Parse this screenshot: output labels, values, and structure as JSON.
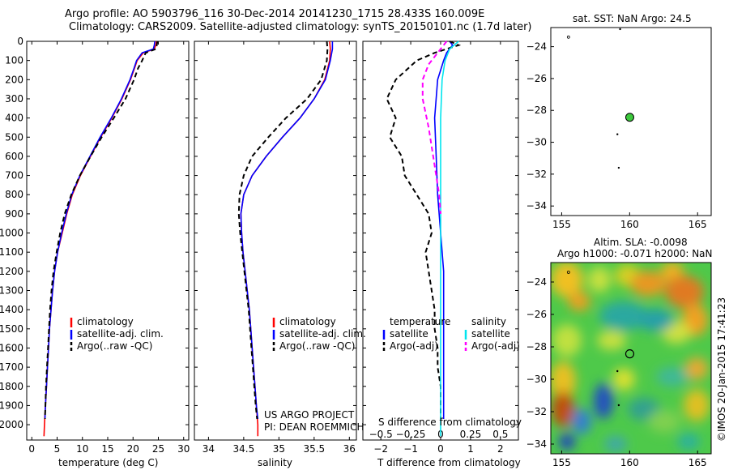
{
  "header": {
    "line1": "Argo profile: AO 5903796_116 30-Dec-2014 20141230_1715 28.433S 160.009E",
    "line2": "Climatology: CARS2009. Satellite-adjusted climatology: synTS_20150101.nc (1.7d later)"
  },
  "colors": {
    "climatology": "#ff0000",
    "satellite": "#0000ff",
    "argo": "#000000",
    "sat_salinity": "#00e5ee",
    "argo_adj_salinity": "#ff00ff"
  },
  "credit": "©IMOS 20-Jan-2015 17:41:23",
  "project": {
    "line1": "US ARGO PROJECT",
    "line2": "PI: DEAN ROEMMICH"
  },
  "chart_data": [
    {
      "type": "line",
      "panel": "temperature",
      "xlabel": "temperature (deg C)",
      "ylabel": "",
      "xlim": [
        -1,
        31
      ],
      "ylim": [
        2080,
        0
      ],
      "xticks": [
        0,
        5,
        10,
        15,
        20,
        25,
        30
      ],
      "yticks": [
        0,
        100,
        200,
        300,
        400,
        500,
        600,
        700,
        800,
        900,
        1000,
        1100,
        1200,
        1300,
        1400,
        1500,
        1600,
        1700,
        1800,
        1900,
        2000
      ],
      "legend": [
        "climatology",
        "satellite-adj. clim.",
        "Argo(..raw -QC)"
      ],
      "series": [
        {
          "name": "climatology",
          "style": "solid",
          "color": "#ff0000",
          "points": [
            [
              24.6,
              0
            ],
            [
              24.5,
              20
            ],
            [
              24.2,
              40
            ],
            [
              22,
              60
            ],
            [
              20.8,
              100
            ],
            [
              20.3,
              140
            ],
            [
              19.5,
              200
            ],
            [
              17.8,
              300
            ],
            [
              15.8,
              400
            ],
            [
              13.6,
              500
            ],
            [
              11.6,
              600
            ],
            [
              9.6,
              700
            ],
            [
              8,
              800
            ],
            [
              6.9,
              900
            ],
            [
              6,
              1000
            ],
            [
              5.1,
              1100
            ],
            [
              4.5,
              1200
            ],
            [
              4.1,
              1300
            ],
            [
              3.8,
              1400
            ],
            [
              3.5,
              1500
            ],
            [
              3.3,
              1600
            ],
            [
              3.1,
              1700
            ],
            [
              2.9,
              1800
            ],
            [
              2.7,
              1900
            ],
            [
              2.5,
              2000
            ],
            [
              2.4,
              2060
            ]
          ]
        },
        {
          "name": "satellite-adj. clim.",
          "style": "solid",
          "color": "#0000ff",
          "points": [
            [
              24.3,
              0
            ],
            [
              24.2,
              20
            ],
            [
              24,
              40
            ],
            [
              21.8,
              60
            ],
            [
              20.7,
              100
            ],
            [
              20.2,
              140
            ],
            [
              19.4,
              200
            ],
            [
              17.7,
              300
            ],
            [
              15.7,
              400
            ],
            [
              13.5,
              500
            ],
            [
              11.5,
              600
            ],
            [
              9.5,
              700
            ],
            [
              7.9,
              800
            ],
            [
              6.8,
              900
            ],
            [
              5.9,
              1000
            ],
            [
              5.1,
              1100
            ],
            [
              4.5,
              1200
            ],
            [
              4.1,
              1300
            ],
            [
              3.8,
              1400
            ],
            [
              3.5,
              1500
            ],
            [
              3.3,
              1600
            ],
            [
              3.1,
              1700
            ],
            [
              2.9,
              1800
            ],
            [
              2.7,
              1900
            ],
            [
              2.6,
              1970
            ]
          ]
        },
        {
          "name": "Argo(..raw -QC)",
          "style": "dash",
          "color": "#000000",
          "points": [
            [
              24.8,
              0
            ],
            [
              24.7,
              20
            ],
            [
              24.5,
              40
            ],
            [
              22.5,
              60
            ],
            [
              21.8,
              100
            ],
            [
              21,
              140
            ],
            [
              20.2,
              200
            ],
            [
              18.5,
              300
            ],
            [
              16.2,
              400
            ],
            [
              13.8,
              500
            ],
            [
              11.6,
              600
            ],
            [
              9.5,
              700
            ],
            [
              7.8,
              800
            ],
            [
              6.5,
              900
            ],
            [
              5.6,
              1000
            ],
            [
              4.9,
              1100
            ],
            [
              4.3,
              1200
            ],
            [
              3.9,
              1300
            ],
            [
              3.6,
              1400
            ],
            [
              3.4,
              1500
            ],
            [
              3.2,
              1600
            ],
            [
              3,
              1700
            ],
            [
              2.8,
              1800
            ],
            [
              2.7,
              1900
            ],
            [
              2.6,
              1970
            ]
          ]
        }
      ]
    },
    {
      "type": "line",
      "panel": "salinity",
      "xlabel": "salinity",
      "ylabel": "",
      "xlim": [
        33.8,
        36.1
      ],
      "ylim": [
        2080,
        0
      ],
      "xticks": [
        34,
        34.5,
        35,
        35.5,
        36
      ],
      "legend": [
        "climatology",
        "satellite-adj. clim.",
        "Argo(..raw -QC)"
      ],
      "series": [
        {
          "name": "climatology",
          "style": "solid",
          "color": "#ff0000",
          "points": [
            [
              35.72,
              0
            ],
            [
              35.73,
              40
            ],
            [
              35.72,
              100
            ],
            [
              35.65,
              200
            ],
            [
              35.5,
              300
            ],
            [
              35.3,
              400
            ],
            [
              35.05,
              500
            ],
            [
              34.82,
              600
            ],
            [
              34.62,
              700
            ],
            [
              34.5,
              800
            ],
            [
              34.46,
              900
            ],
            [
              34.47,
              1000
            ],
            [
              34.49,
              1100
            ],
            [
              34.52,
              1200
            ],
            [
              34.55,
              1300
            ],
            [
              34.58,
              1400
            ],
            [
              34.6,
              1500
            ],
            [
              34.62,
              1600
            ],
            [
              34.64,
              1700
            ],
            [
              34.66,
              1800
            ],
            [
              34.68,
              1900
            ],
            [
              34.7,
              2000
            ],
            [
              34.7,
              2060
            ]
          ]
        },
        {
          "name": "satellite-adj. clim.",
          "style": "solid",
          "color": "#0000ff",
          "points": [
            [
              35.76,
              0
            ],
            [
              35.76,
              40
            ],
            [
              35.73,
              100
            ],
            [
              35.66,
              200
            ],
            [
              35.5,
              300
            ],
            [
              35.3,
              400
            ],
            [
              35.05,
              500
            ],
            [
              34.82,
              600
            ],
            [
              34.62,
              700
            ],
            [
              34.5,
              800
            ],
            [
              34.46,
              900
            ],
            [
              34.47,
              1000
            ],
            [
              34.49,
              1100
            ],
            [
              34.52,
              1200
            ],
            [
              34.55,
              1300
            ],
            [
              34.58,
              1400
            ],
            [
              34.6,
              1500
            ],
            [
              34.62,
              1600
            ],
            [
              34.64,
              1700
            ],
            [
              34.66,
              1800
            ],
            [
              34.68,
              1900
            ],
            [
              34.7,
              1970
            ]
          ]
        },
        {
          "name": "Argo(..raw -QC)",
          "style": "dash",
          "color": "#000000",
          "points": [
            [
              35.68,
              0
            ],
            [
              35.69,
              40
            ],
            [
              35.68,
              100
            ],
            [
              35.6,
              200
            ],
            [
              35.4,
              300
            ],
            [
              35.1,
              400
            ],
            [
              34.85,
              500
            ],
            [
              34.62,
              600
            ],
            [
              34.5,
              700
            ],
            [
              34.44,
              800
            ],
            [
              34.43,
              900
            ],
            [
              34.45,
              1000
            ],
            [
              34.48,
              1100
            ],
            [
              34.51,
              1200
            ],
            [
              34.54,
              1300
            ],
            [
              34.57,
              1400
            ],
            [
              34.59,
              1500
            ],
            [
              34.61,
              1600
            ],
            [
              34.63,
              1700
            ],
            [
              34.65,
              1800
            ],
            [
              34.67,
              1900
            ],
            [
              34.69,
              1970
            ]
          ]
        }
      ]
    },
    {
      "type": "line",
      "panel": "difference",
      "xlabel": "T difference from climatology",
      "xlabel_top": "S difference from climatology",
      "xlim": [
        -2.6,
        2.6
      ],
      "ylim": [
        2080,
        0
      ],
      "xticks": [
        -2,
        -1,
        0,
        1,
        2
      ],
      "xticks_top": [
        -0.5,
        -0.25,
        0,
        0.25,
        0.5
      ],
      "legend_left": {
        "title": "temperature",
        "items": [
          "satellite",
          "Argo(-adj)"
        ]
      },
      "legend_right": {
        "title": "salinity",
        "items": [
          "satellite",
          "Argo(-adj)"
        ]
      },
      "series": [
        {
          "name": "temperature satellite",
          "style": "solid",
          "color": "#0000ff",
          "points": [
            [
              0.3,
              0
            ],
            [
              0.4,
              20
            ],
            [
              0.2,
              60
            ],
            [
              0.1,
              100
            ],
            [
              -0.1,
              200
            ],
            [
              -0.2,
              400
            ],
            [
              -0.15,
              600
            ],
            [
              -0.1,
              800
            ],
            [
              0,
              1000
            ],
            [
              0.1,
              1200
            ],
            [
              0.1,
              1500
            ],
            [
              0.1,
              1800
            ],
            [
              0.1,
              1970
            ]
          ]
        },
        {
          "name": "temperature Argo(-adj)",
          "style": "dash",
          "color": "#000000",
          "points": [
            [
              0.3,
              0
            ],
            [
              0.6,
              20
            ],
            [
              -0.2,
              60
            ],
            [
              -0.8,
              100
            ],
            [
              -1.5,
              200
            ],
            [
              -1.8,
              300
            ],
            [
              -1.5,
              400
            ],
            [
              -1.7,
              500
            ],
            [
              -1.3,
              600
            ],
            [
              -1.2,
              700
            ],
            [
              -0.8,
              800
            ],
            [
              -0.4,
              900
            ],
            [
              -0.3,
              1000
            ],
            [
              -0.5,
              1100
            ],
            [
              -0.4,
              1200
            ],
            [
              -0.3,
              1300
            ],
            [
              -0.2,
              1400
            ],
            [
              -0.2,
              1500
            ],
            [
              -0.1,
              1600
            ],
            [
              -0.1,
              1700
            ],
            [
              0,
              1800
            ],
            [
              0,
              1970
            ]
          ]
        },
        {
          "name": "salinity satellite",
          "style": "solid",
          "color": "#00e5ee",
          "points": [
            [
              0.6,
              0
            ],
            [
              0.3,
              40
            ],
            [
              0.15,
              100
            ],
            [
              0.05,
              200
            ],
            [
              0,
              400
            ],
            [
              0,
              600
            ],
            [
              0,
              800
            ],
            [
              0,
              1000
            ],
            [
              0,
              1200
            ],
            [
              0,
              1500
            ],
            [
              0,
              1800
            ],
            [
              0,
              2060
            ]
          ]
        },
        {
          "name": "salinity Argo(-adj)",
          "style": "dash",
          "color": "#ff00ff",
          "points": [
            [
              0.2,
              0
            ],
            [
              -0.1,
              60
            ],
            [
              -0.4,
              120
            ],
            [
              -0.6,
              200
            ],
            [
              -0.6,
              300
            ],
            [
              -0.4,
              450
            ],
            [
              -0.25,
              600
            ],
            [
              -0.15,
              700
            ],
            [
              -0.05,
              800
            ],
            [
              0,
              900
            ]
          ]
        }
      ]
    },
    {
      "type": "scatter",
      "panel": "sst_map",
      "title": "sat. SST: NaN Argo: 24.5",
      "xlim": [
        154.2,
        166
      ],
      "ylim": [
        -34.6,
        -22.8
      ],
      "xticks": [
        155,
        160,
        165
      ],
      "yticks": [
        -24,
        -26,
        -28,
        -30,
        -32,
        -34
      ],
      "profile_location": [
        160.009,
        -28.433
      ]
    },
    {
      "type": "heatmap",
      "panel": "sla_map",
      "title_line1": "Altim. SLA: -0.0098",
      "title_line2": "Argo h1000: -0.071 h2000: NaN",
      "xlim": [
        154.2,
        166
      ],
      "ylim": [
        -34.6,
        -22.8
      ],
      "xticks": [
        155,
        160,
        165
      ],
      "yticks": [
        -24,
        -26,
        -28,
        -30,
        -32,
        -34
      ],
      "profile_location": [
        160.009,
        -28.433
      ]
    }
  ]
}
